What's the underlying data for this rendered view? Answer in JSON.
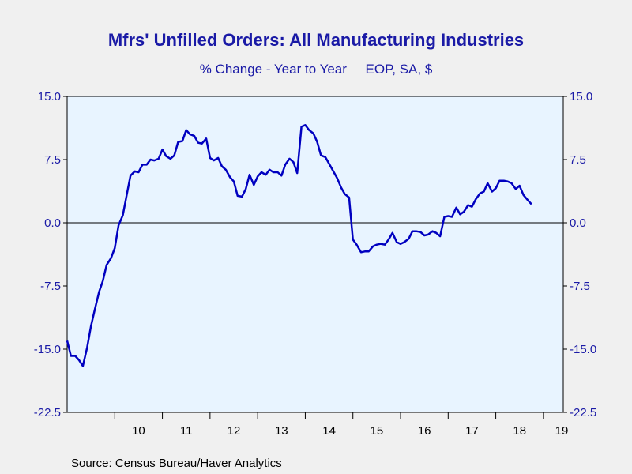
{
  "chart_data": {
    "type": "line",
    "title": "Mfrs' Unfilled Orders: All Manufacturing Industries",
    "subtitle": "% Change - Year to Year     EOP, SA, $",
    "source": "Source:  Census Bureau/Haver Analytics",
    "ylim": [
      -22.5,
      15.0
    ],
    "yticks": [
      "15.0",
      "7.5",
      "0.0",
      "-7.5",
      "-15.0",
      "-22.5"
    ],
    "xticks": [
      "10",
      "11",
      "12",
      "13",
      "14",
      "15",
      "16",
      "17",
      "18",
      "19"
    ],
    "xlim": [
      2009.0,
      2019.4167
    ],
    "grid": false,
    "zero_line": true,
    "line_color": "#0000c0",
    "series": [
      {
        "values": [
          [
            2009.0,
            -14.0
          ],
          [
            2009.08,
            -15.8
          ],
          [
            2009.17,
            -15.8
          ],
          [
            2009.25,
            -16.3
          ],
          [
            2009.33,
            -17.0
          ],
          [
            2009.42,
            -14.8
          ],
          [
            2009.5,
            -12.3
          ],
          [
            2009.58,
            -10.3
          ],
          [
            2009.67,
            -8.2
          ],
          [
            2009.75,
            -6.9
          ],
          [
            2009.83,
            -5.0
          ],
          [
            2009.92,
            -4.2
          ],
          [
            2010.0,
            -3.0
          ],
          [
            2010.08,
            -0.3
          ],
          [
            2010.17,
            0.9
          ],
          [
            2010.25,
            3.3
          ],
          [
            2010.33,
            5.6
          ],
          [
            2010.42,
            6.1
          ],
          [
            2010.5,
            6.0
          ],
          [
            2010.58,
            6.9
          ],
          [
            2010.67,
            6.9
          ],
          [
            2010.75,
            7.5
          ],
          [
            2010.83,
            7.4
          ],
          [
            2010.92,
            7.6
          ],
          [
            2011.0,
            8.7
          ],
          [
            2011.08,
            7.9
          ],
          [
            2011.17,
            7.6
          ],
          [
            2011.25,
            8.0
          ],
          [
            2011.33,
            9.6
          ],
          [
            2011.42,
            9.7
          ],
          [
            2011.5,
            11.0
          ],
          [
            2011.58,
            10.5
          ],
          [
            2011.67,
            10.3
          ],
          [
            2011.75,
            9.5
          ],
          [
            2011.83,
            9.4
          ],
          [
            2011.92,
            10.0
          ],
          [
            2012.0,
            7.7
          ],
          [
            2012.08,
            7.4
          ],
          [
            2012.17,
            7.7
          ],
          [
            2012.25,
            6.7
          ],
          [
            2012.33,
            6.3
          ],
          [
            2012.42,
            5.4
          ],
          [
            2012.5,
            4.9
          ],
          [
            2012.58,
            3.2
          ],
          [
            2012.67,
            3.1
          ],
          [
            2012.75,
            4.0
          ],
          [
            2012.83,
            5.7
          ],
          [
            2012.92,
            4.5
          ],
          [
            2013.0,
            5.5
          ],
          [
            2013.08,
            6.0
          ],
          [
            2013.17,
            5.7
          ],
          [
            2013.25,
            6.3
          ],
          [
            2013.33,
            6.0
          ],
          [
            2013.42,
            6.0
          ],
          [
            2013.5,
            5.6
          ],
          [
            2013.58,
            6.9
          ],
          [
            2013.67,
            7.6
          ],
          [
            2013.75,
            7.2
          ],
          [
            2013.83,
            5.9
          ],
          [
            2013.92,
            11.4
          ],
          [
            2014.0,
            11.6
          ],
          [
            2014.08,
            11.0
          ],
          [
            2014.17,
            10.6
          ],
          [
            2014.25,
            9.6
          ],
          [
            2014.33,
            8.0
          ],
          [
            2014.42,
            7.8
          ],
          [
            2014.5,
            7.0
          ],
          [
            2014.58,
            6.2
          ],
          [
            2014.67,
            5.3
          ],
          [
            2014.75,
            4.2
          ],
          [
            2014.83,
            3.4
          ],
          [
            2014.92,
            3.0
          ],
          [
            2015.0,
            -2.0
          ],
          [
            2015.08,
            -2.6
          ],
          [
            2015.17,
            -3.5
          ],
          [
            2015.25,
            -3.4
          ],
          [
            2015.33,
            -3.4
          ],
          [
            2015.42,
            -2.8
          ],
          [
            2015.5,
            -2.6
          ],
          [
            2015.58,
            -2.5
          ],
          [
            2015.67,
            -2.6
          ],
          [
            2015.75,
            -2.0
          ],
          [
            2015.83,
            -1.2
          ],
          [
            2015.92,
            -2.3
          ],
          [
            2016.0,
            -2.5
          ],
          [
            2016.08,
            -2.3
          ],
          [
            2016.17,
            -1.9
          ],
          [
            2016.25,
            -1.0
          ],
          [
            2016.33,
            -1.0
          ],
          [
            2016.42,
            -1.1
          ],
          [
            2016.5,
            -1.5
          ],
          [
            2016.58,
            -1.4
          ],
          [
            2016.67,
            -1.0
          ],
          [
            2016.75,
            -1.2
          ],
          [
            2016.83,
            -1.6
          ],
          [
            2016.92,
            0.7
          ],
          [
            2017.0,
            0.8
          ],
          [
            2017.08,
            0.7
          ],
          [
            2017.17,
            1.8
          ],
          [
            2017.25,
            1.0
          ],
          [
            2017.33,
            1.3
          ],
          [
            2017.42,
            2.1
          ],
          [
            2017.5,
            1.9
          ],
          [
            2017.58,
            2.8
          ],
          [
            2017.67,
            3.5
          ],
          [
            2017.75,
            3.7
          ],
          [
            2017.83,
            4.7
          ],
          [
            2017.92,
            3.7
          ],
          [
            2018.0,
            4.1
          ],
          [
            2018.08,
            5.0
          ],
          [
            2018.17,
            5.0
          ],
          [
            2018.25,
            4.9
          ],
          [
            2018.33,
            4.7
          ],
          [
            2018.42,
            4.0
          ],
          [
            2018.5,
            4.4
          ],
          [
            2018.58,
            3.3
          ],
          [
            2018.67,
            2.7
          ],
          [
            2018.75,
            2.2
          ]
        ]
      }
    ]
  }
}
